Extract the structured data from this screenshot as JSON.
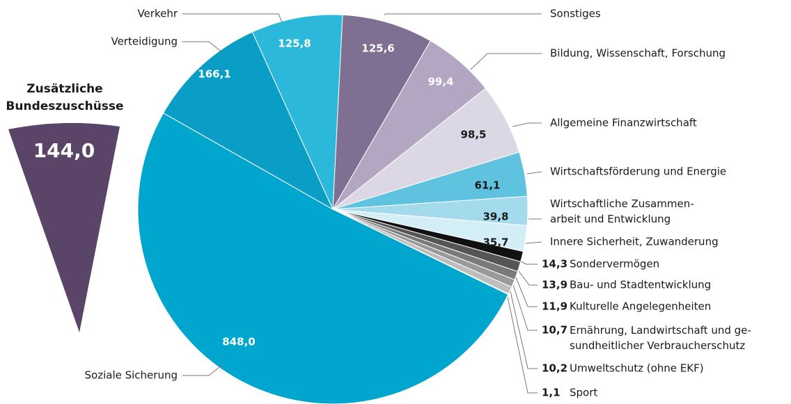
{
  "chart_data": {
    "type": "pie",
    "categories": [
      "Sonstiges",
      "Bildung, Wissenschaft, Forschung",
      "Allgemeine Finanzwirtschaft",
      "Wirtschaftsförderung und Energie",
      "Wirtschaftliche Zusammen-\narbeit und Entwicklung",
      "Innere Sicherheit, Zuwanderung",
      "Sondervermögen",
      "Bau- und Stadtentwicklung",
      "Kulturelle Angelegenheiten",
      "Ernährung, Landwirtschaft und ge-\nsundheitlicher Verbraucherschutz",
      "Umweltschutz (ohne EKF)",
      "Sport",
      "Soziale Sicherung",
      "Verteidigung",
      "Verkehr"
    ],
    "values": [
      125.6,
      99.4,
      98.5,
      61.1,
      39.8,
      35.7,
      14.3,
      13.9,
      11.9,
      10.7,
      10.2,
      1.1,
      848.0,
      166.1,
      125.8
    ],
    "value_labels": [
      "125,6",
      "99,4",
      "98,5",
      "61,1",
      "39,8",
      "35,7",
      "14,3",
      "13,9",
      "11,9",
      "10,7",
      "10,2",
      "1,1",
      "848,0",
      "166,1",
      "125,8"
    ],
    "colors": [
      "#7f6f92",
      "#b3a6c2",
      "#dcd7e4",
      "#5fc2de",
      "#a4dbec",
      "#d4eef7",
      "#111111",
      "#555555",
      "#7a7a7a",
      "#9a9a9a",
      "#bdbdbd",
      "#dddddd",
      "#00a6cd",
      "#0a9ec6",
      "#2bb8da"
    ],
    "extra": {
      "label": "Zusätzliche\nBundeszuschüsse",
      "value": 144.0,
      "value_label": "144,0",
      "color": "#5a4468"
    }
  }
}
